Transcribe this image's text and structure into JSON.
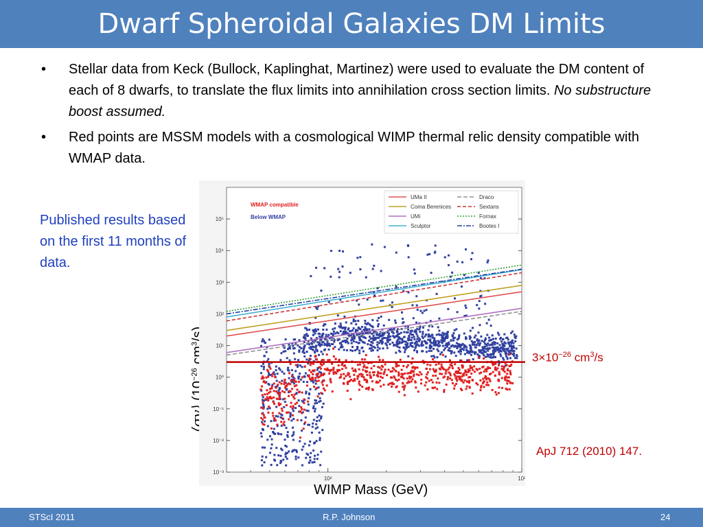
{
  "title": "Dwarf Spheroidal Galaxies DM Limits",
  "bullets": [
    {
      "text": "Stellar data from Keck  (Bullock, Kaplinghat, Martinez) were used to evaluate the DM content of each of 8 dwarfs, to translate the flux limits into annihilation cross section limits.  ",
      "italic": "No substructure boost assumed."
    },
    {
      "text": "Red points are MSSM models with a cosmological WIMP thermal relic density compatible with WMAP data.",
      "italic": ""
    }
  ],
  "bullet_glyph": "•",
  "published_note": "Published results based on the first 11 months of data.",
  "ylabel": {
    "prefix": "⟨σv⟩",
    "unit_open": "(10",
    "exp": "−26",
    "unit_mid": " cm",
    "exp2": "3",
    "unit_close": "/s)"
  },
  "xlabel": "WIMP Mass (GeV)",
  "reference_line_label": {
    "prefix": "3×10",
    "exp": "−26",
    "mid": " cm",
    "exp2": "3",
    "suffix": "/s"
  },
  "citation": "ApJ 712 (2010) 147.",
  "footer": {
    "left": "STScI 2011",
    "center": "R.P. Johnson",
    "right": "24"
  },
  "colors": {
    "accent": "#4f81bd",
    "wmap_compatible": "#e02020",
    "below_wmap": "#3040a0",
    "reference_line": "#c00000",
    "text_blue": "#1f3fbf"
  },
  "chart_data": {
    "type": "scatter",
    "xscale": "log",
    "yscale": "log",
    "xlim": [
      30,
      1000
    ],
    "ylim": [
      0.001,
      1000000
    ],
    "xticks": [
      "10²",
      "10³"
    ],
    "yticks": [
      "10⁻³",
      "10⁻²",
      "10⁻¹",
      "10⁰",
      "10¹",
      "10²",
      "10³",
      "10⁴",
      "10⁵"
    ],
    "scatter_legend": [
      {
        "name": "WMAP compatible",
        "color": "#e02020"
      },
      {
        "name": "Below WMAP",
        "color": "#3040a0"
      }
    ],
    "reference_line": {
      "y": 3,
      "color": "#c00000"
    },
    "limit_curves": [
      {
        "name": "UMa II",
        "color": "#e05050",
        "dash": "solid",
        "y_at_xmin": 20,
        "y_at_xmax": 500
      },
      {
        "name": "Coma Berenices",
        "color": "#c0a020",
        "dash": "solid",
        "y_at_xmin": 30,
        "y_at_xmax": 800
      },
      {
        "name": "UMi",
        "color": "#b070c0",
        "dash": "solid",
        "y_at_xmin": 6,
        "y_at_xmax": 150
      },
      {
        "name": "Sculptor",
        "color": "#40b0d0",
        "dash": "solid",
        "y_at_xmin": 80,
        "y_at_xmax": 2500
      },
      {
        "name": "Draco",
        "color": "#909090",
        "dash": "6,3",
        "y_at_xmin": 5,
        "y_at_xmax": 120
      },
      {
        "name": "Sextans",
        "color": "#d03030",
        "dash": "5,3",
        "y_at_xmin": 60,
        "y_at_xmax": 2000
      },
      {
        "name": "Fornax",
        "color": "#30a030",
        "dash": "2,2",
        "y_at_xmin": 120,
        "y_at_xmax": 3500
      },
      {
        "name": "Bootes I",
        "color": "#2040a0",
        "dash": "7,2,2,2",
        "y_at_xmin": 100,
        "y_at_xmax": 2600
      }
    ]
  }
}
